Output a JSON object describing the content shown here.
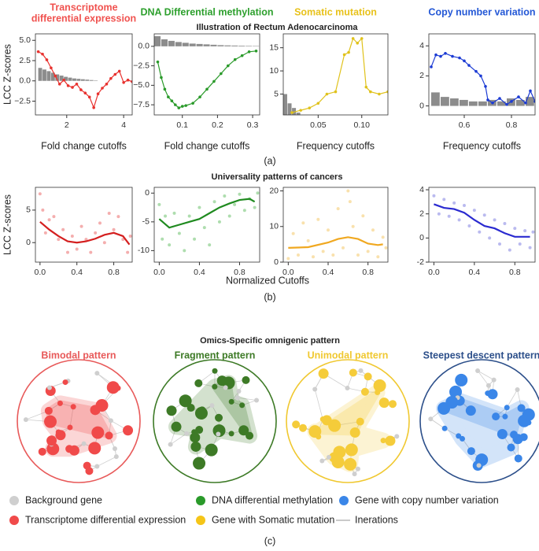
{
  "figure": {
    "section_a_title": "Illustration of Rectum Adenocarcinoma",
    "section_b_title": "Universality patterns of cancers",
    "section_c_title": "Omics-Specific omnigenic pattern",
    "shared_x_label": "Normalized Cutoffs",
    "panel_labels": [
      "(a)",
      "(b)",
      "(c)"
    ]
  },
  "chart_data": [
    {
      "type": "line",
      "title": [
        "Transcriptome",
        "differential expression"
      ],
      "title_color": "#f0524f",
      "x_label": "Fold change cutoffs",
      "y_label": "LCC Z-scores",
      "xlim": [
        0.9,
        4.3
      ],
      "xticks": [
        2,
        4
      ],
      "ylim": [
        -4.2,
        5.8
      ],
      "yticks": [
        {
          "value": -2.5,
          "label": "−2.5"
        },
        {
          "value": 0,
          "label": "0.0"
        },
        {
          "value": 2.5,
          "label": "2.5"
        },
        {
          "value": 5,
          "label": "5.0"
        }
      ],
      "series": [
        {
          "kind": "bar",
          "color": "#8c8c8c",
          "x": [
            1.0,
            1.15,
            1.3,
            1.45,
            1.6,
            1.75,
            1.9,
            2.05,
            2.2,
            2.35,
            2.5,
            2.65,
            2.8,
            2.95
          ],
          "values": [
            1.6,
            1.4,
            1.2,
            1.0,
            0.8,
            0.65,
            0.5,
            0.4,
            0.3,
            0.25,
            0.2,
            0.15,
            0.1,
            0.05
          ]
        },
        {
          "kind": "line",
          "color": "#e8322f",
          "x": [
            1.0,
            1.15,
            1.3,
            1.45,
            1.6,
            1.75,
            1.9,
            2.05,
            2.2,
            2.35,
            2.5,
            2.65,
            2.8,
            2.95,
            3.1,
            3.25,
            3.4,
            3.55,
            3.7,
            3.85,
            4.0,
            4.15,
            4.3
          ],
          "values": [
            3.6,
            3.3,
            2.6,
            1.6,
            0.6,
            -0.4,
            0.1,
            -0.6,
            -0.8,
            -0.4,
            -1.1,
            -1.5,
            -2.0,
            -3.3,
            -1.6,
            -0.9,
            -0.4,
            0.3,
            0.8,
            1.2,
            -0.2,
            0.1,
            -0.1
          ]
        }
      ]
    },
    {
      "type": "line",
      "title": "DNA Differential methylation",
      "title_color": "#2ea02e",
      "x_label": "Fold change cutoffs",
      "xlim": [
        0.02,
        0.32
      ],
      "xticks": [
        0.1,
        0.2,
        0.3
      ],
      "ylim": [
        -8.8,
        1.6
      ],
      "yticks": [
        {
          "value": -7.5,
          "label": "−7.5"
        },
        {
          "value": -5,
          "label": "−5.0"
        },
        {
          "value": -2.5,
          "label": "−2.5"
        },
        {
          "value": 0,
          "label": "0.0"
        }
      ],
      "series": [
        {
          "kind": "bar",
          "color": "#8c8c8c",
          "x": [
            0.02,
            0.04,
            0.06,
            0.08,
            0.1,
            0.12,
            0.14,
            0.16,
            0.18,
            0.2,
            0.22,
            0.24,
            0.26,
            0.28,
            0.3
          ],
          "values": [
            1.3,
            0.9,
            0.7,
            0.55,
            0.45,
            0.35,
            0.3,
            0.25,
            0.2,
            0.15,
            0.12,
            0.1,
            0.08,
            0.06,
            0.05
          ]
        },
        {
          "kind": "line",
          "color": "#2a9a2a",
          "x": [
            0.03,
            0.04,
            0.05,
            0.06,
            0.07,
            0.08,
            0.09,
            0.1,
            0.11,
            0.13,
            0.15,
            0.17,
            0.19,
            0.21,
            0.23,
            0.25,
            0.27,
            0.29,
            0.31
          ],
          "values": [
            -2.0,
            -4.0,
            -5.5,
            -6.5,
            -7.0,
            -7.5,
            -7.9,
            -7.7,
            -7.6,
            -7.3,
            -6.5,
            -5.5,
            -4.5,
            -3.5,
            -2.5,
            -1.7,
            -1.2,
            -0.7,
            -0.6
          ]
        }
      ]
    },
    {
      "type": "line",
      "title": "Somatic mutation",
      "title_color": "#e8c21c",
      "x_label": "Frequency cutoffs",
      "xlim": [
        0.01,
        0.13
      ],
      "xticks": [
        {
          "value": 0.05,
          "label": "0.05"
        },
        {
          "value": 0.1,
          "label": "0.10"
        }
      ],
      "ylim": [
        0.5,
        18
      ],
      "yticks": [
        5,
        10,
        15
      ],
      "series": [
        {
          "kind": "bar",
          "color": "#8c8c8c",
          "x": [
            0.01,
            0.015,
            0.02,
            0.025
          ],
          "values": [
            5,
            3,
            2,
            1
          ]
        },
        {
          "kind": "line",
          "color": "#e0c21b",
          "x": [
            0.02,
            0.03,
            0.04,
            0.05,
            0.06,
            0.07,
            0.08,
            0.085,
            0.09,
            0.095,
            0.1,
            0.105,
            0.11,
            0.12,
            0.13
          ],
          "values": [
            1,
            1.5,
            2,
            3,
            5,
            5.5,
            13.5,
            14,
            17,
            16,
            17,
            6.5,
            5.5,
            5,
            5.5
          ]
        }
      ]
    },
    {
      "type": "line",
      "title": "Copy number variation",
      "title_color": "#2458d6",
      "x_label": "Frequency cutoffs",
      "xlim": [
        0.45,
        0.9
      ],
      "xticks": [
        0.6,
        0.8
      ],
      "ylim": [
        -0.6,
        4.8
      ],
      "yticks": [
        0,
        2,
        4
      ],
      "series": [
        {
          "kind": "bar",
          "color": "#8c8c8c",
          "x": [
            0.46,
            0.5,
            0.54,
            0.58,
            0.62,
            0.66,
            0.7,
            0.74,
            0.78,
            0.82,
            0.86
          ],
          "values": [
            0.9,
            0.6,
            0.5,
            0.4,
            0.3,
            0.3,
            0.4,
            0.3,
            0.5,
            0.4,
            0.6
          ]
        },
        {
          "kind": "line",
          "color": "#1c3bd4",
          "x": [
            0.46,
            0.48,
            0.5,
            0.52,
            0.55,
            0.58,
            0.6,
            0.62,
            0.65,
            0.67,
            0.69,
            0.7,
            0.72,
            0.75,
            0.78,
            0.8,
            0.83,
            0.86,
            0.88,
            0.9
          ],
          "values": [
            2.6,
            3.4,
            3.3,
            3.5,
            3.3,
            3.2,
            3.0,
            2.7,
            2.3,
            2.0,
            1.3,
            0.4,
            0.2,
            0.5,
            0.1,
            0.3,
            0.6,
            0.2,
            1.0,
            0.3
          ]
        }
      ]
    },
    {
      "type": "scatter",
      "y_label": "LCC Z-scores",
      "xlim": [
        -0.05,
        1.0
      ],
      "xticks": [
        {
          "value": 0,
          "label": "0.0"
        },
        0.4,
        0.8
      ],
      "ylim": [
        -3,
        8.5
      ],
      "yticks": [
        0,
        5
      ],
      "series": [
        {
          "kind": "points",
          "color": "#f08c8c",
          "x": [
            0,
            0.03,
            0.06,
            0.1,
            0.15,
            0.2,
            0.25,
            0.3,
            0.35,
            0.4,
            0.45,
            0.5,
            0.55,
            0.6,
            0.65,
            0.7,
            0.75,
            0.8,
            0.85,
            0.9,
            0.95,
            0.98
          ],
          "values": [
            7.5,
            5,
            1.5,
            3.5,
            4,
            0.5,
            2,
            -1.5,
            1,
            -1,
            2.5,
            0.5,
            -1.5,
            1.5,
            3,
            0,
            4.5,
            2,
            4,
            0.5,
            -1.5,
            1
          ]
        },
        {
          "kind": "curve",
          "color": "#d41f1f",
          "x": [
            0,
            0.1,
            0.2,
            0.3,
            0.4,
            0.5,
            0.6,
            0.7,
            0.8,
            0.9,
            0.97
          ],
          "values": [
            3.2,
            2,
            1,
            0.2,
            0,
            0.2,
            0.6,
            1.2,
            1.5,
            1,
            -0.3
          ]
        }
      ]
    },
    {
      "type": "scatter",
      "xlim": [
        -0.05,
        1.0
      ],
      "xticks": [
        {
          "value": 0,
          "label": "0.0"
        },
        0.4,
        0.8
      ],
      "ylim": [
        -12,
        1
      ],
      "yticks": [
        -10,
        -5,
        0
      ],
      "series": [
        {
          "kind": "points",
          "color": "#8ccf8c",
          "x": [
            0,
            0.03,
            0.06,
            0.1,
            0.15,
            0.2,
            0.25,
            0.3,
            0.35,
            0.4,
            0.45,
            0.5,
            0.55,
            0.6,
            0.65,
            0.7,
            0.75,
            0.8,
            0.85,
            0.9,
            0.95,
            0.98
          ],
          "values": [
            -2,
            -8,
            -4,
            -9,
            -3.5,
            -7,
            -10,
            -4,
            -8,
            -2.5,
            -6,
            -9,
            -1.5,
            -5,
            -0.5,
            -4,
            -2,
            -0.2,
            -3,
            -1,
            -2.5,
            0
          ]
        },
        {
          "kind": "curve",
          "color": "#1f8a1f",
          "x": [
            0,
            0.1,
            0.2,
            0.3,
            0.4,
            0.5,
            0.6,
            0.7,
            0.8,
            0.9,
            0.95
          ],
          "values": [
            -4.5,
            -6,
            -5.5,
            -5,
            -4.5,
            -3.5,
            -2.5,
            -1.8,
            -1.2,
            -1.0,
            -1.5
          ]
        }
      ]
    },
    {
      "type": "scatter",
      "xlim": [
        -0.05,
        1.0
      ],
      "xticks": [
        {
          "value": 0,
          "label": "0.0"
        },
        0.4,
        0.8
      ],
      "ylim": [
        0,
        21
      ],
      "yticks": [
        0,
        10,
        20
      ],
      "series": [
        {
          "kind": "points",
          "color": "#f7d48a",
          "x": [
            0,
            0.05,
            0.1,
            0.15,
            0.2,
            0.25,
            0.3,
            0.35,
            0.4,
            0.45,
            0.5,
            0.55,
            0.6,
            0.62,
            0.65,
            0.7,
            0.75,
            0.8,
            0.85,
            0.9,
            0.95,
            0.98
          ],
          "values": [
            1,
            8,
            2,
            11,
            6,
            1.5,
            12,
            3,
            9,
            2,
            15,
            4,
            20,
            17,
            10,
            2,
            13,
            3,
            9,
            1.5,
            7,
            4
          ]
        },
        {
          "kind": "curve",
          "color": "#f0a820",
          "x": [
            0,
            0.2,
            0.4,
            0.5,
            0.6,
            0.7,
            0.8,
            0.9,
            0.95
          ],
          "values": [
            4,
            4.2,
            5.5,
            6.5,
            7,
            6.5,
            5.2,
            4.8,
            5
          ]
        }
      ]
    },
    {
      "type": "scatter",
      "xlim": [
        -0.05,
        1.0
      ],
      "xticks": [
        {
          "value": 0,
          "label": "0.0"
        },
        0.4,
        0.8
      ],
      "ylim": [
        -2,
        4.2
      ],
      "yticks": [
        -2,
        0,
        2,
        4
      ],
      "series": [
        {
          "kind": "points",
          "color": "#9d9de8",
          "x": [
            0,
            0.05,
            0.1,
            0.15,
            0.2,
            0.25,
            0.3,
            0.35,
            0.4,
            0.45,
            0.5,
            0.55,
            0.6,
            0.65,
            0.7,
            0.75,
            0.8,
            0.85,
            0.9,
            0.95,
            0.98
          ],
          "values": [
            3.5,
            2,
            3.2,
            1.8,
            2.9,
            1.5,
            2.7,
            1,
            2.3,
            0.5,
            1.9,
            0,
            1.5,
            -0.5,
            1.2,
            -1,
            0.8,
            -0.5,
            0.6,
            -0.8,
            0.5
          ]
        },
        {
          "kind": "curve",
          "color": "#2a2ad0",
          "x": [
            0,
            0.1,
            0.2,
            0.3,
            0.4,
            0.5,
            0.6,
            0.7,
            0.8,
            0.9,
            0.95
          ],
          "values": [
            2.8,
            2.5,
            2.4,
            2.1,
            1.5,
            1.0,
            0.8,
            0.4,
            0.1,
            0.1,
            0.1
          ]
        }
      ]
    }
  ],
  "patterns": [
    {
      "title": "Bimodal pattern",
      "color": "#e85a5a",
      "node_color": "#f04a4a"
    },
    {
      "title": "Fragment pattern",
      "color": "#3d7a26",
      "node_color": "#3d7a26"
    },
    {
      "title": "Unimodal pattern",
      "color": "#f0c830",
      "node_color": "#f5cc3a"
    },
    {
      "title": "Steepest descent pattern",
      "color": "#2c4f8a",
      "node_color": "#3a86e8"
    }
  ],
  "legend": [
    {
      "label": "Background gene",
      "color": "#cfcfcf",
      "symbol": "dot"
    },
    {
      "label": "DNA differential methylation",
      "color": "#2a9a2a",
      "symbol": "dot"
    },
    {
      "label": "Gene with copy number variation",
      "color": "#3a86e8",
      "symbol": "dot"
    },
    {
      "label": "Transcriptome differential expression",
      "color": "#f04a4a",
      "symbol": "dot"
    },
    {
      "label": "Gene with Somatic mutation",
      "color": "#f5c518",
      "symbol": "dot"
    },
    {
      "label": "Inerations",
      "color": "#b8b8b8",
      "symbol": "line"
    }
  ]
}
